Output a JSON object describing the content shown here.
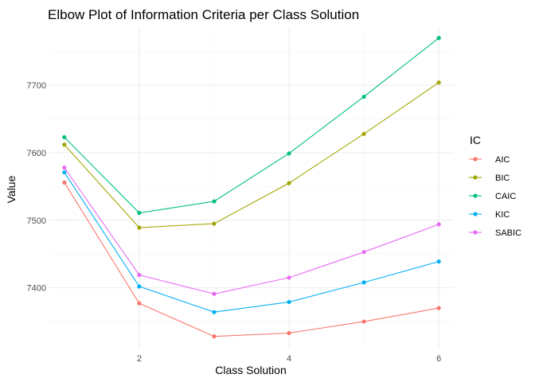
{
  "chart_data": {
    "type": "line",
    "title": "Elbow Plot of Information Criteria per Class Solution",
    "xlabel": "Class Solution",
    "ylabel": "Value",
    "x": [
      1,
      2,
      3,
      4,
      5,
      6
    ],
    "xlim": [
      0.8,
      6.2
    ],
    "ylim": [
      7310,
      7785
    ],
    "x_ticks": [
      2,
      4,
      6
    ],
    "y_ticks": [
      7400,
      7500,
      7600,
      7700
    ],
    "grid": true,
    "legend": {
      "title": "IC",
      "position": "right"
    },
    "series": [
      {
        "name": "AIC",
        "color": "#F8766D",
        "values": [
          7556,
          7377,
          7328,
          7333,
          7350,
          7370
        ]
      },
      {
        "name": "BIC",
        "color": "#A3A500",
        "values": [
          7612,
          7489,
          7495,
          7555,
          7628,
          7704
        ]
      },
      {
        "name": "CAIC",
        "color": "#00BF7D",
        "values": [
          7623,
          7511,
          7528,
          7599,
          7683,
          7770
        ]
      },
      {
        "name": "KIC",
        "color": "#00B0F6",
        "values": [
          7571,
          7402,
          7364,
          7379,
          7408,
          7439
        ]
      },
      {
        "name": "SABIC",
        "color": "#E76BF3",
        "values": [
          7578,
          7419,
          7391,
          7415,
          7453,
          7494
        ]
      }
    ]
  }
}
